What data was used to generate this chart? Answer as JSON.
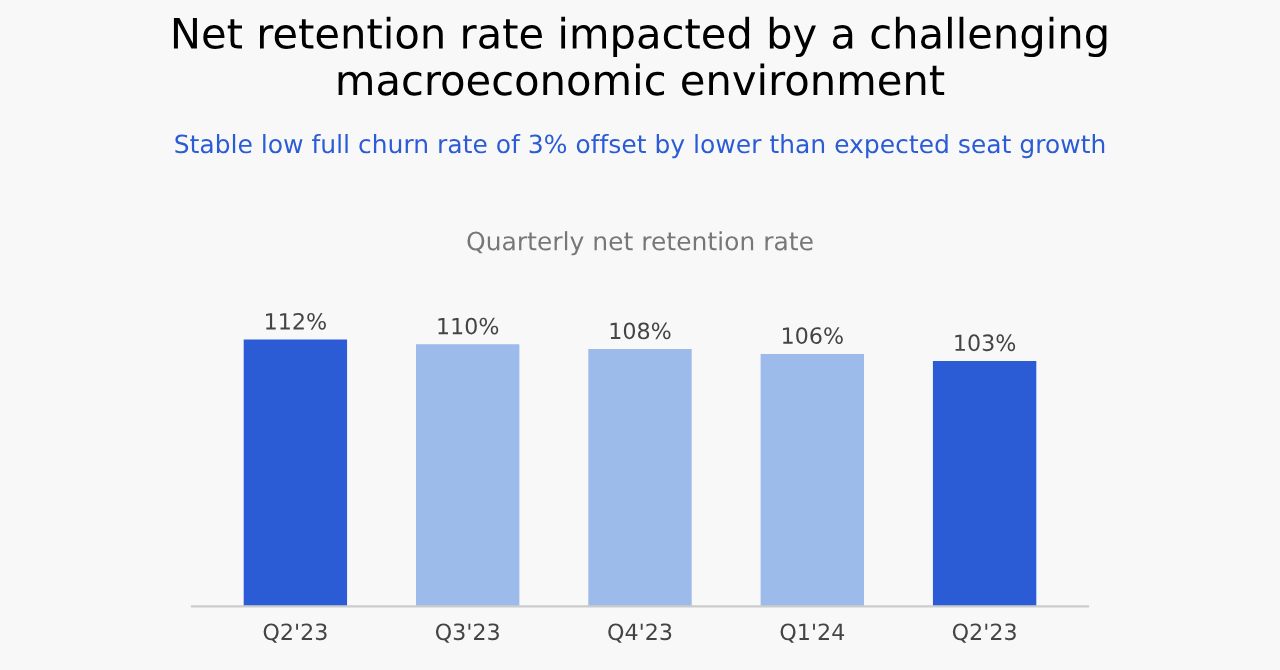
{
  "chart_data": {
    "type": "bar",
    "title": "Net retention rate impacted by a challenging macroeconomic environment",
    "subtitle": "Stable low full churn rate of 3% offset by lower than expected seat growth",
    "annotations": [
      "Quarterly net retention rate"
    ],
    "categories": [
      "Q2'23",
      "Q3'23",
      "Q4'23",
      "Q1'24",
      "Q2'23"
    ],
    "values": [
      112,
      110,
      108,
      106,
      103
    ],
    "colors": [
      "#2b5cd6",
      "#9dbbea",
      "#9dbbea",
      "#9dbbea",
      "#2b5cd6"
    ],
    "value_labels": [
      "112%",
      "110%",
      "108%",
      "106%",
      "103%"
    ],
    "grid": false,
    "legend": false
  }
}
